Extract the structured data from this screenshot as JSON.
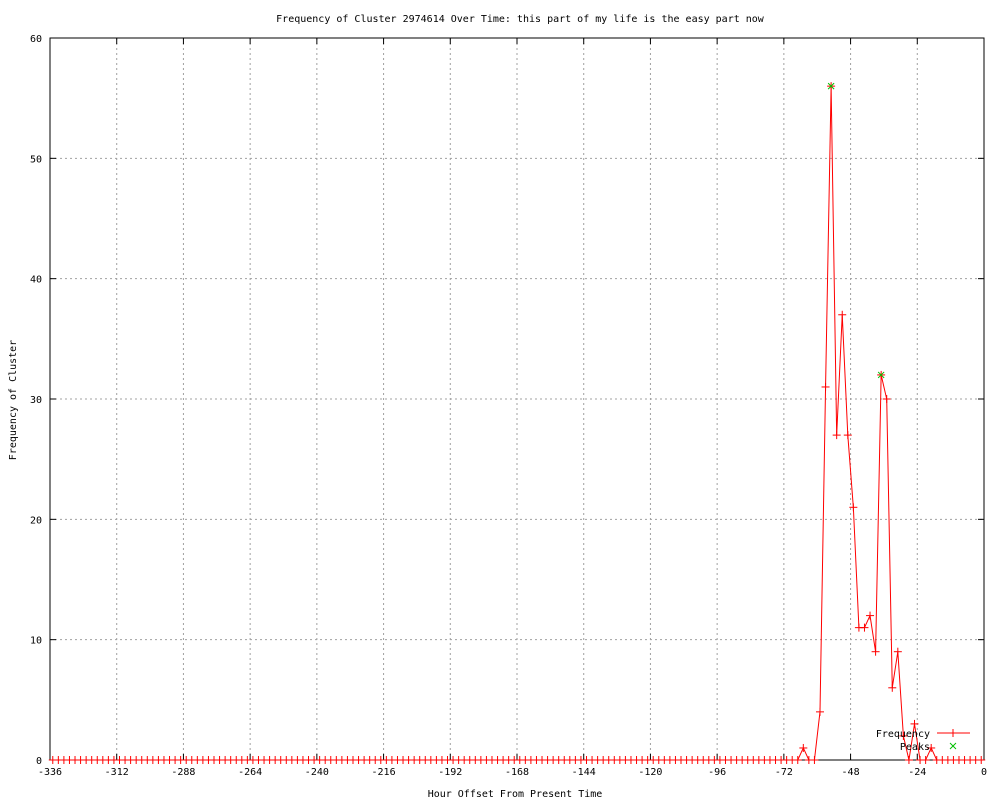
{
  "chart_data": {
    "type": "line",
    "title": "Frequency of Cluster 2974614 Over Time: this part of my life is the easy part now",
    "xlabel": "Hour Offset From Present Time",
    "ylabel": "Frequency of Cluster",
    "xlim": [
      -336,
      0
    ],
    "ylim": [
      0,
      60
    ],
    "xticks": [
      -336,
      -312,
      -288,
      -264,
      -240,
      -216,
      -192,
      -168,
      -144,
      -120,
      -96,
      -72,
      -48,
      -24,
      0
    ],
    "yticks": [
      0,
      10,
      20,
      30,
      40,
      50,
      60
    ],
    "grid": true,
    "legend_position": "bottom-right",
    "series": [
      {
        "name": "Frequency",
        "color": "#ff0000",
        "marker": "plus",
        "x": [
          -335,
          -333,
          -331,
          -329,
          -327,
          -325,
          -323,
          -321,
          -319,
          -317,
          -315,
          -313,
          -311,
          -309,
          -307,
          -305,
          -303,
          -301,
          -299,
          -297,
          -295,
          -293,
          -291,
          -289,
          -287,
          -285,
          -283,
          -281,
          -279,
          -277,
          -275,
          -273,
          -271,
          -269,
          -267,
          -265,
          -263,
          -261,
          -259,
          -257,
          -255,
          -253,
          -251,
          -249,
          -247,
          -245,
          -243,
          -241,
          -239,
          -237,
          -235,
          -233,
          -231,
          -229,
          -227,
          -225,
          -223,
          -221,
          -219,
          -217,
          -215,
          -213,
          -211,
          -209,
          -207,
          -205,
          -203,
          -201,
          -199,
          -197,
          -195,
          -193,
          -191,
          -189,
          -187,
          -185,
          -183,
          -181,
          -179,
          -177,
          -175,
          -173,
          -171,
          -169,
          -167,
          -165,
          -163,
          -161,
          -159,
          -157,
          -155,
          -153,
          -151,
          -149,
          -147,
          -145,
          -143,
          -141,
          -139,
          -137,
          -135,
          -133,
          -131,
          -129,
          -127,
          -125,
          -123,
          -121,
          -119,
          -117,
          -115,
          -113,
          -111,
          -109,
          -107,
          -105,
          -103,
          -101,
          -99,
          -97,
          -95,
          -93,
          -91,
          -89,
          -87,
          -85,
          -83,
          -81,
          -79,
          -77,
          -75,
          -73,
          -71,
          -69,
          -67,
          -65,
          -63,
          -61,
          -59,
          -57,
          -55,
          -53,
          -51,
          -49,
          -47,
          -45,
          -43,
          -41,
          -39,
          -37,
          -35,
          -33,
          -31,
          -29,
          -27,
          -25,
          -23,
          -21,
          -19,
          -17,
          -15,
          -13,
          -11,
          -9,
          -7,
          -5,
          -3,
          -1
        ],
        "y": [
          0,
          0,
          0,
          0,
          0,
          0,
          0,
          0,
          0,
          0,
          0,
          0,
          0,
          0,
          0,
          0,
          0,
          0,
          0,
          0,
          0,
          0,
          0,
          0,
          0,
          0,
          0,
          0,
          0,
          0,
          0,
          0,
          0,
          0,
          0,
          0,
          0,
          0,
          0,
          0,
          0,
          0,
          0,
          0,
          0,
          0,
          0,
          0,
          0,
          0,
          0,
          0,
          0,
          0,
          0,
          0,
          0,
          0,
          0,
          0,
          0,
          0,
          0,
          0,
          0,
          0,
          0,
          0,
          0,
          0,
          0,
          0,
          0,
          0,
          0,
          0,
          0,
          0,
          0,
          0,
          0,
          0,
          0,
          0,
          0,
          0,
          0,
          0,
          0,
          0,
          0,
          0,
          0,
          0,
          0,
          0,
          0,
          0,
          0,
          0,
          0,
          0,
          0,
          0,
          0,
          0,
          0,
          0,
          0,
          0,
          0,
          0,
          0,
          0,
          0,
          0,
          0,
          0,
          0,
          0,
          0,
          0,
          0,
          0,
          0,
          0,
          0,
          0,
          0,
          0,
          0,
          0,
          0,
          0,
          0,
          1,
          0,
          0,
          4,
          31,
          56,
          27,
          37,
          27,
          21,
          11,
          11,
          12,
          9,
          32,
          30,
          6,
          9,
          2,
          0,
          3,
          0,
          0,
          1,
          0,
          0,
          0,
          0,
          0,
          0,
          0,
          0,
          0
        ]
      },
      {
        "name": "Peaks",
        "color": "#00c000",
        "marker": "cross",
        "x": [
          -55,
          -37
        ],
        "y": [
          56,
          32
        ]
      }
    ]
  }
}
